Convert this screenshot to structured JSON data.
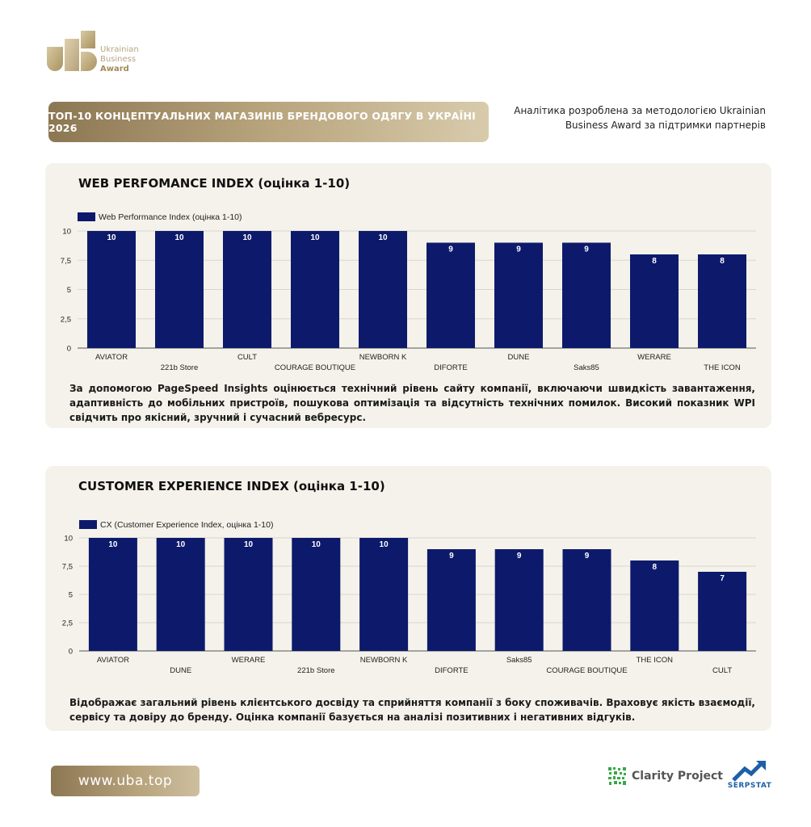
{
  "logo": {
    "line1": "Ukrainian",
    "line2": "Business",
    "line3": "Award"
  },
  "header": {
    "title": "ТОП-10 КОНЦЕПТУАЛЬНИХ МАГАЗИНІВ БРЕНДОВОГО ОДЯГУ В УКРАЇНІ 2026",
    "methodology": "Аналітика розроблена за методологією Ukrainian Business Award за підтримки партнерів"
  },
  "section1": {
    "title": "WEB PERFOMANCE INDEX (оцінка 1-10)",
    "description": "За допомогою PageSpeed Insights оцінюється технічний рівень сайту компанії, включаючи швидкість завантаження, адаптивність до мобільних пристроїв, пошукова оптимізація та відсутність технічних помилок. Високий показник WPI свідчить про якісний, зручний і сучасний вебресурс."
  },
  "section2": {
    "title": "CUSTOMER EXPERIENCE INDEX (оцінка 1-10)",
    "description": "Відображає загальний рівень клієнтського досвіду та сприйняття компанії з боку споживачів. Враховує якість взаємодії, сервісу та довіру до бренду. Оцінка компанії базується на аналізі позитивних і негативних відгуків."
  },
  "footer": {
    "url": "www.uba.top",
    "partner1": "Clarity Project",
    "partner2": "SERPSTAT"
  },
  "colors": {
    "bar": "#0d1a6b",
    "gold": "#b8a47d",
    "panel": "#f4f2ea"
  },
  "chart_data": [
    {
      "type": "bar",
      "title": "WEB PERFOMANCE INDEX (оцінка 1-10)",
      "categories": [
        "AVIATOR",
        "221b Store",
        "CULT",
        "COURAGE BOUTIQUE",
        "NEWBORN K",
        "DIFORTE",
        "DUNE",
        "Saks85",
        "WERARE",
        "THE ICON"
      ],
      "series": [
        {
          "name": "Web Performance Index (оцінка 1-10)",
          "values": [
            10,
            10,
            10,
            10,
            10,
            9,
            9,
            9,
            8,
            8
          ]
        }
      ],
      "yticks": [
        "0",
        "2,5",
        "5",
        "7,5",
        "10"
      ],
      "ylim": [
        0,
        10
      ],
      "grid": true,
      "legend": "top-left"
    },
    {
      "type": "bar",
      "title": "CUSTOMER EXPERIENCE INDEX (оцінка 1-10)",
      "categories": [
        "AVIATOR",
        "DUNE",
        "WERARE",
        "221b Store",
        "NEWBORN K",
        "DIFORTE",
        "Saks85",
        "COURAGE BOUTIQUE",
        "THE ICON",
        "CULT"
      ],
      "series": [
        {
          "name": "CX (Customer Experience Index, оцінка 1-10)",
          "values": [
            10,
            10,
            10,
            10,
            10,
            9,
            9,
            9,
            8,
            7
          ]
        }
      ],
      "yticks": [
        "0",
        "2,5",
        "5",
        "7,5",
        "10"
      ],
      "ylim": [
        0,
        10
      ],
      "grid": true,
      "legend": "top-left"
    }
  ]
}
